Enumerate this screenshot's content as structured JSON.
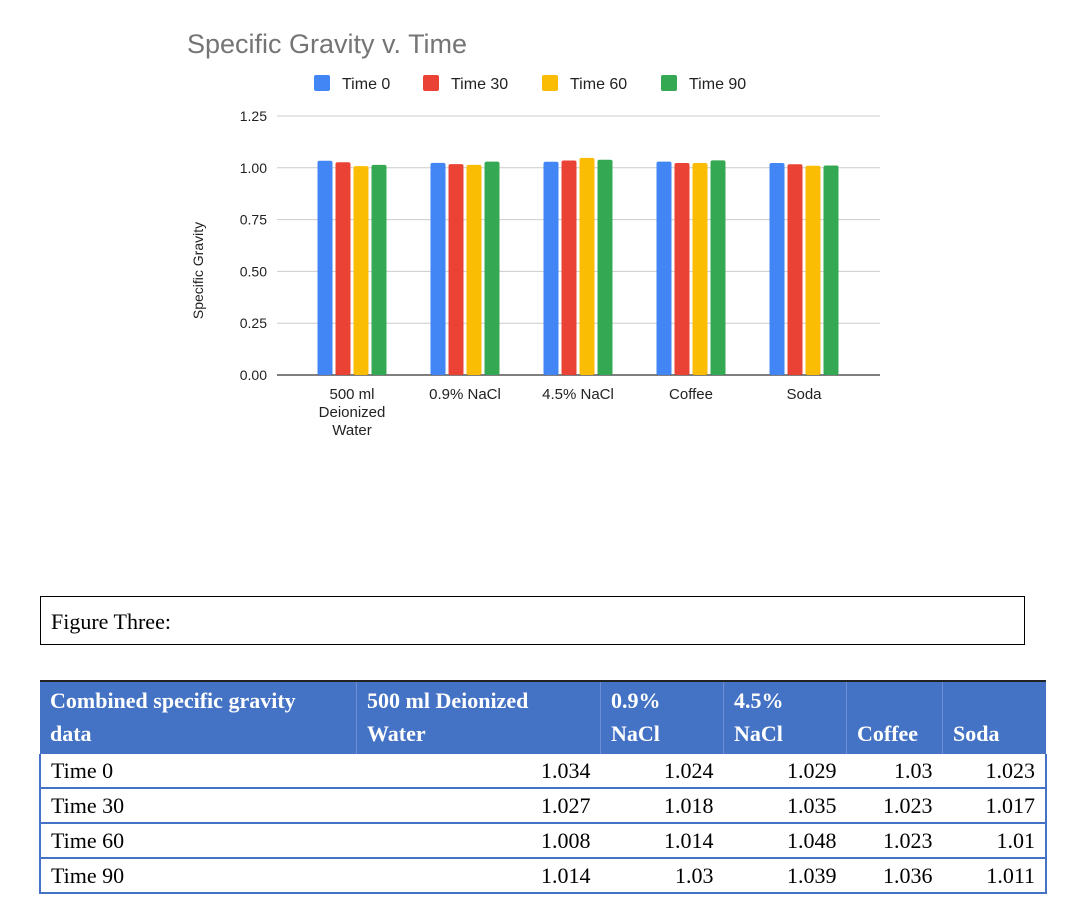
{
  "chart_data": {
    "type": "bar",
    "title": "Specific Gravity v. Time",
    "ylabel": "Specific Gravity",
    "xlabel": "",
    "ylim": [
      0,
      1.25
    ],
    "yticks": [
      "0.00",
      "0.25",
      "0.50",
      "0.75",
      "1.00",
      "1.25"
    ],
    "grid": true,
    "legend": "top",
    "categories": [
      "500 ml Deionized Water",
      "0.9% NaCl",
      "4.5% NaCl",
      "Coffee",
      "Soda"
    ],
    "category_lines": [
      [
        "500 ml",
        "Deionized",
        "Water"
      ],
      [
        "0.9% NaCl"
      ],
      [
        "4.5% NaCl"
      ],
      [
        "Coffee"
      ],
      [
        "Soda"
      ]
    ],
    "series": [
      {
        "name": "Time 0",
        "color": "#4285f4",
        "values": [
          1.034,
          1.024,
          1.029,
          1.03,
          1.023
        ]
      },
      {
        "name": "Time 30",
        "color": "#ea4335",
        "values": [
          1.027,
          1.018,
          1.035,
          1.023,
          1.017
        ]
      },
      {
        "name": "Time 60",
        "color": "#fbbc04",
        "values": [
          1.008,
          1.014,
          1.048,
          1.023,
          1.01
        ]
      },
      {
        "name": "Time 90",
        "color": "#34a853",
        "values": [
          1.014,
          1.03,
          1.039,
          1.036,
          1.011
        ]
      }
    ]
  },
  "figure_caption": "Figure Three:",
  "table": {
    "headers": [
      [
        "Combined specific gravity",
        "data"
      ],
      [
        "500 ml Deionized",
        "Water"
      ],
      [
        "0.9%",
        "NaCl"
      ],
      [
        "4.5%",
        "NaCl"
      ],
      [
        "",
        "Coffee"
      ],
      [
        "",
        "Soda"
      ]
    ],
    "header_color": "#4472c4",
    "rows": [
      [
        "Time 0",
        "1.034",
        "1.024",
        "1.029",
        "1.03",
        "1.023"
      ],
      [
        "Time 30",
        "1.027",
        "1.018",
        "1.035",
        "1.023",
        "1.017"
      ],
      [
        "Time 60",
        "1.008",
        "1.014",
        "1.048",
        "1.023",
        "1.01"
      ],
      [
        "Time 90",
        "1.014",
        "1.03",
        "1.039",
        "1.036",
        "1.011"
      ]
    ]
  }
}
